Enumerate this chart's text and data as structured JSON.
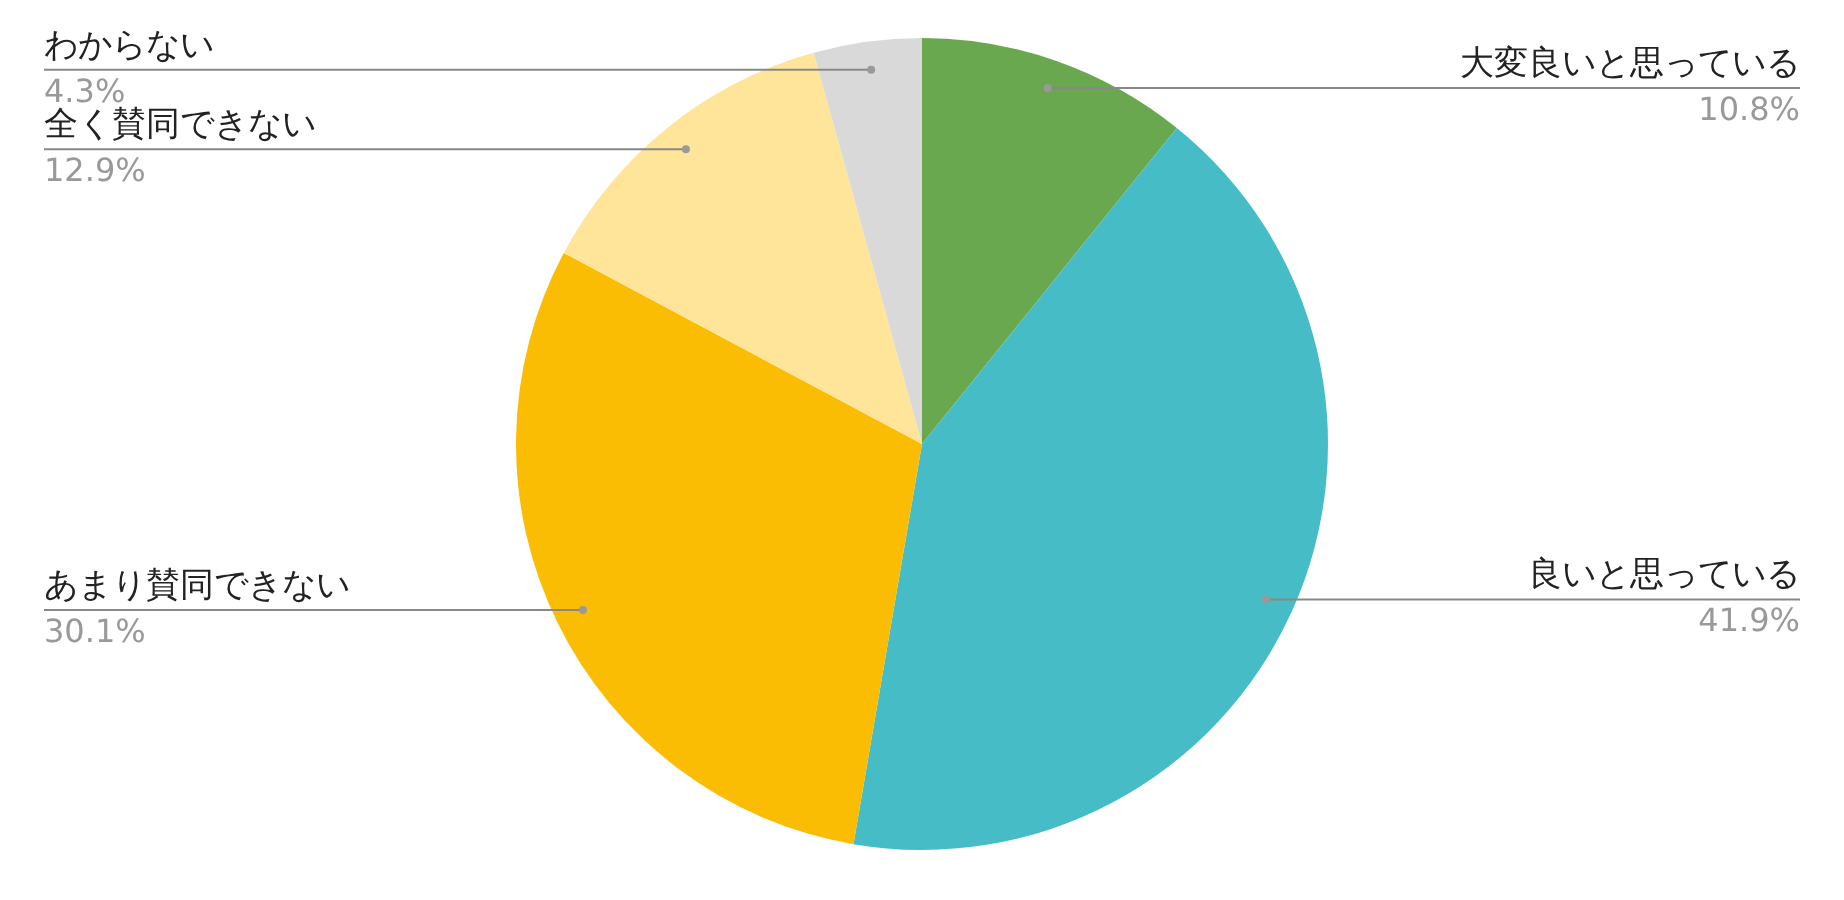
{
  "chart_data": {
    "type": "pie",
    "categories": [
      "大変良いと思っている",
      "良いと思っている",
      "あまり賛同できない",
      "全く賛同できない",
      "わからない"
    ],
    "values": [
      10.8,
      41.9,
      30.1,
      12.9,
      4.3
    ],
    "colors": [
      "#6aa84f",
      "#46bdc6",
      "#fbbc04",
      "#ffe599",
      "#d9d9d9"
    ],
    "value_labels": [
      "10.8%",
      "41.9%",
      "30.1%",
      "12.9%",
      "4.3%"
    ]
  }
}
